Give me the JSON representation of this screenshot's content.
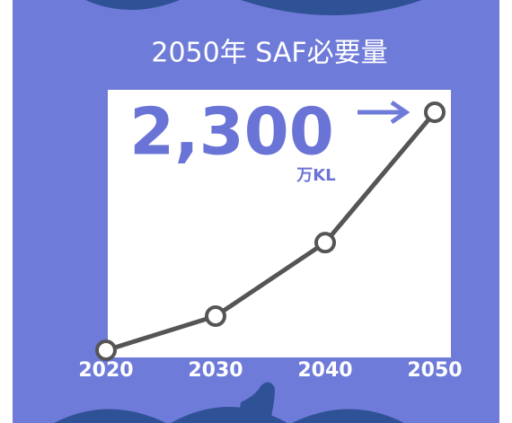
{
  "chart_data": {
    "type": "line",
    "title": "2050年 SAF必要量",
    "x": [
      2020,
      2030,
      2040,
      2050
    ],
    "xlim": [
      2020,
      2050
    ],
    "series": [
      {
        "name": null,
        "color": "#555555",
        "values": [
          0,
          330,
          1040,
          2300
        ],
        "value_labels": [
          null,
          null,
          null,
          "2,300"
        ]
      }
    ],
    "unit_label": "万KL",
    "ylim": [
      0,
      2300
    ]
  }
}
